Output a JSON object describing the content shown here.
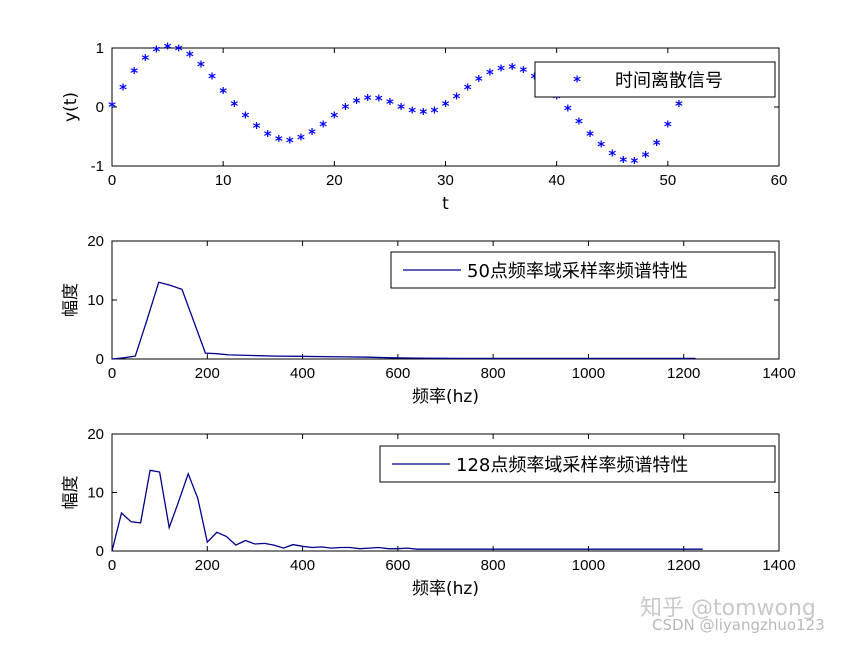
{
  "chart_data": [
    {
      "type": "scatter",
      "xlabel": "t",
      "ylabel": "y(t)",
      "xlim": [
        0,
        60
      ],
      "ylim": [
        -1,
        1
      ],
      "xticks": [
        "0",
        "10",
        "20",
        "30",
        "40",
        "50",
        "60"
      ],
      "yticks": [
        "-1",
        "0",
        "1"
      ],
      "legend_position": "top-right",
      "series": [
        {
          "name": "时间离散信号",
          "color": "#0000ff",
          "marker": "star",
          "x": [
            0,
            1,
            2,
            3,
            4,
            5,
            6,
            7,
            8,
            9,
            10,
            11,
            12,
            13,
            14,
            15,
            16,
            17,
            18,
            19,
            20,
            21,
            22,
            23,
            24,
            25,
            26,
            27,
            28,
            29,
            30,
            31,
            32,
            33,
            34,
            35,
            36,
            37,
            38,
            39,
            40,
            41,
            42,
            43,
            44,
            45,
            46,
            47,
            48,
            49,
            50,
            51
          ],
          "y": [
            0,
            0.3,
            0.58,
            0.8,
            0.94,
            0.99,
            0.96,
            0.86,
            0.69,
            0.48,
            0.24,
            0.02,
            -0.18,
            -0.36,
            -0.49,
            -0.58,
            -0.6,
            -0.55,
            -0.46,
            -0.33,
            -0.18,
            -0.03,
            0.07,
            0.12,
            0.11,
            0.05,
            -0.03,
            -0.09,
            -0.12,
            -0.09,
            0.02,
            0.14,
            0.3,
            0.44,
            0.55,
            0.62,
            0.64,
            0.59,
            0.48,
            0.33,
            0.14,
            -0.06,
            -0.28,
            -0.49,
            -0.67,
            -0.82,
            -0.93,
            -0.95,
            -0.85,
            -0.64,
            -0.33,
            0.02
          ]
        }
      ]
    },
    {
      "type": "line",
      "xlabel": "频率(hz)",
      "ylabel": "幅度",
      "xlim": [
        0,
        1400
      ],
      "ylim": [
        0,
        20
      ],
      "xticks": [
        "0",
        "200",
        "400",
        "600",
        "800",
        "1000",
        "1200",
        "1400"
      ],
      "yticks": [
        "0",
        "10",
        "20"
      ],
      "legend_position": "top-right",
      "series": [
        {
          "name": "50点频率域采样率频谱特性",
          "color": "#00008b",
          "x": [
            0,
            25,
            49,
            73,
            98,
            122,
            147,
            171,
            196,
            220,
            245,
            294,
            343,
            392,
            441,
            490,
            539,
            588,
            637,
            686,
            735,
            784,
            833,
            882,
            931,
            980,
            1029,
            1078,
            1127,
            1176,
            1225
          ],
          "y": [
            0,
            0.2,
            0.5,
            6.5,
            13.0,
            12.5,
            11.8,
            6.5,
            1.0,
            0.9,
            0.7,
            0.6,
            0.5,
            0.45,
            0.4,
            0.35,
            0.3,
            0.2,
            0.15,
            0.12,
            0.1,
            0.1,
            0.1,
            0.1,
            0.1,
            0.1,
            0.1,
            0.1,
            0.1,
            0.1,
            0.1
          ]
        }
      ]
    },
    {
      "type": "line",
      "xlabel": "频率(hz)",
      "ylabel": "幅度",
      "xlim": [
        0,
        1400
      ],
      "ylim": [
        0,
        20
      ],
      "xticks": [
        "0",
        "200",
        "400",
        "600",
        "800",
        "1000",
        "1200",
        "1400"
      ],
      "yticks": [
        "0",
        "10",
        "20"
      ],
      "legend_position": "top-right",
      "series": [
        {
          "name": "128点频率域采样率频谱特性",
          "color": "#00008b",
          "x": [
            0,
            20,
            40,
            60,
            80,
            100,
            120,
            140,
            160,
            180,
            200,
            220,
            240,
            260,
            280,
            300,
            320,
            340,
            360,
            380,
            400,
            420,
            440,
            460,
            480,
            500,
            520,
            540,
            560,
            580,
            600,
            620,
            640,
            700,
            800,
            900,
            1000,
            1100,
            1200,
            1240
          ],
          "y": [
            0,
            6.5,
            5.0,
            4.8,
            13.8,
            13.5,
            4.0,
            8.5,
            13.2,
            9.0,
            1.5,
            3.2,
            2.5,
            1.0,
            1.8,
            1.2,
            1.3,
            1.0,
            0.5,
            1.1,
            0.8,
            0.6,
            0.7,
            0.5,
            0.6,
            0.6,
            0.4,
            0.5,
            0.6,
            0.4,
            0.4,
            0.5,
            0.3,
            0.3,
            0.3,
            0.3,
            0.3,
            0.3,
            0.3,
            0.3
          ]
        }
      ]
    }
  ],
  "watermark": {
    "line1": "知乎 @tomwong",
    "line2": "CSDN @liyangzhuo123"
  }
}
